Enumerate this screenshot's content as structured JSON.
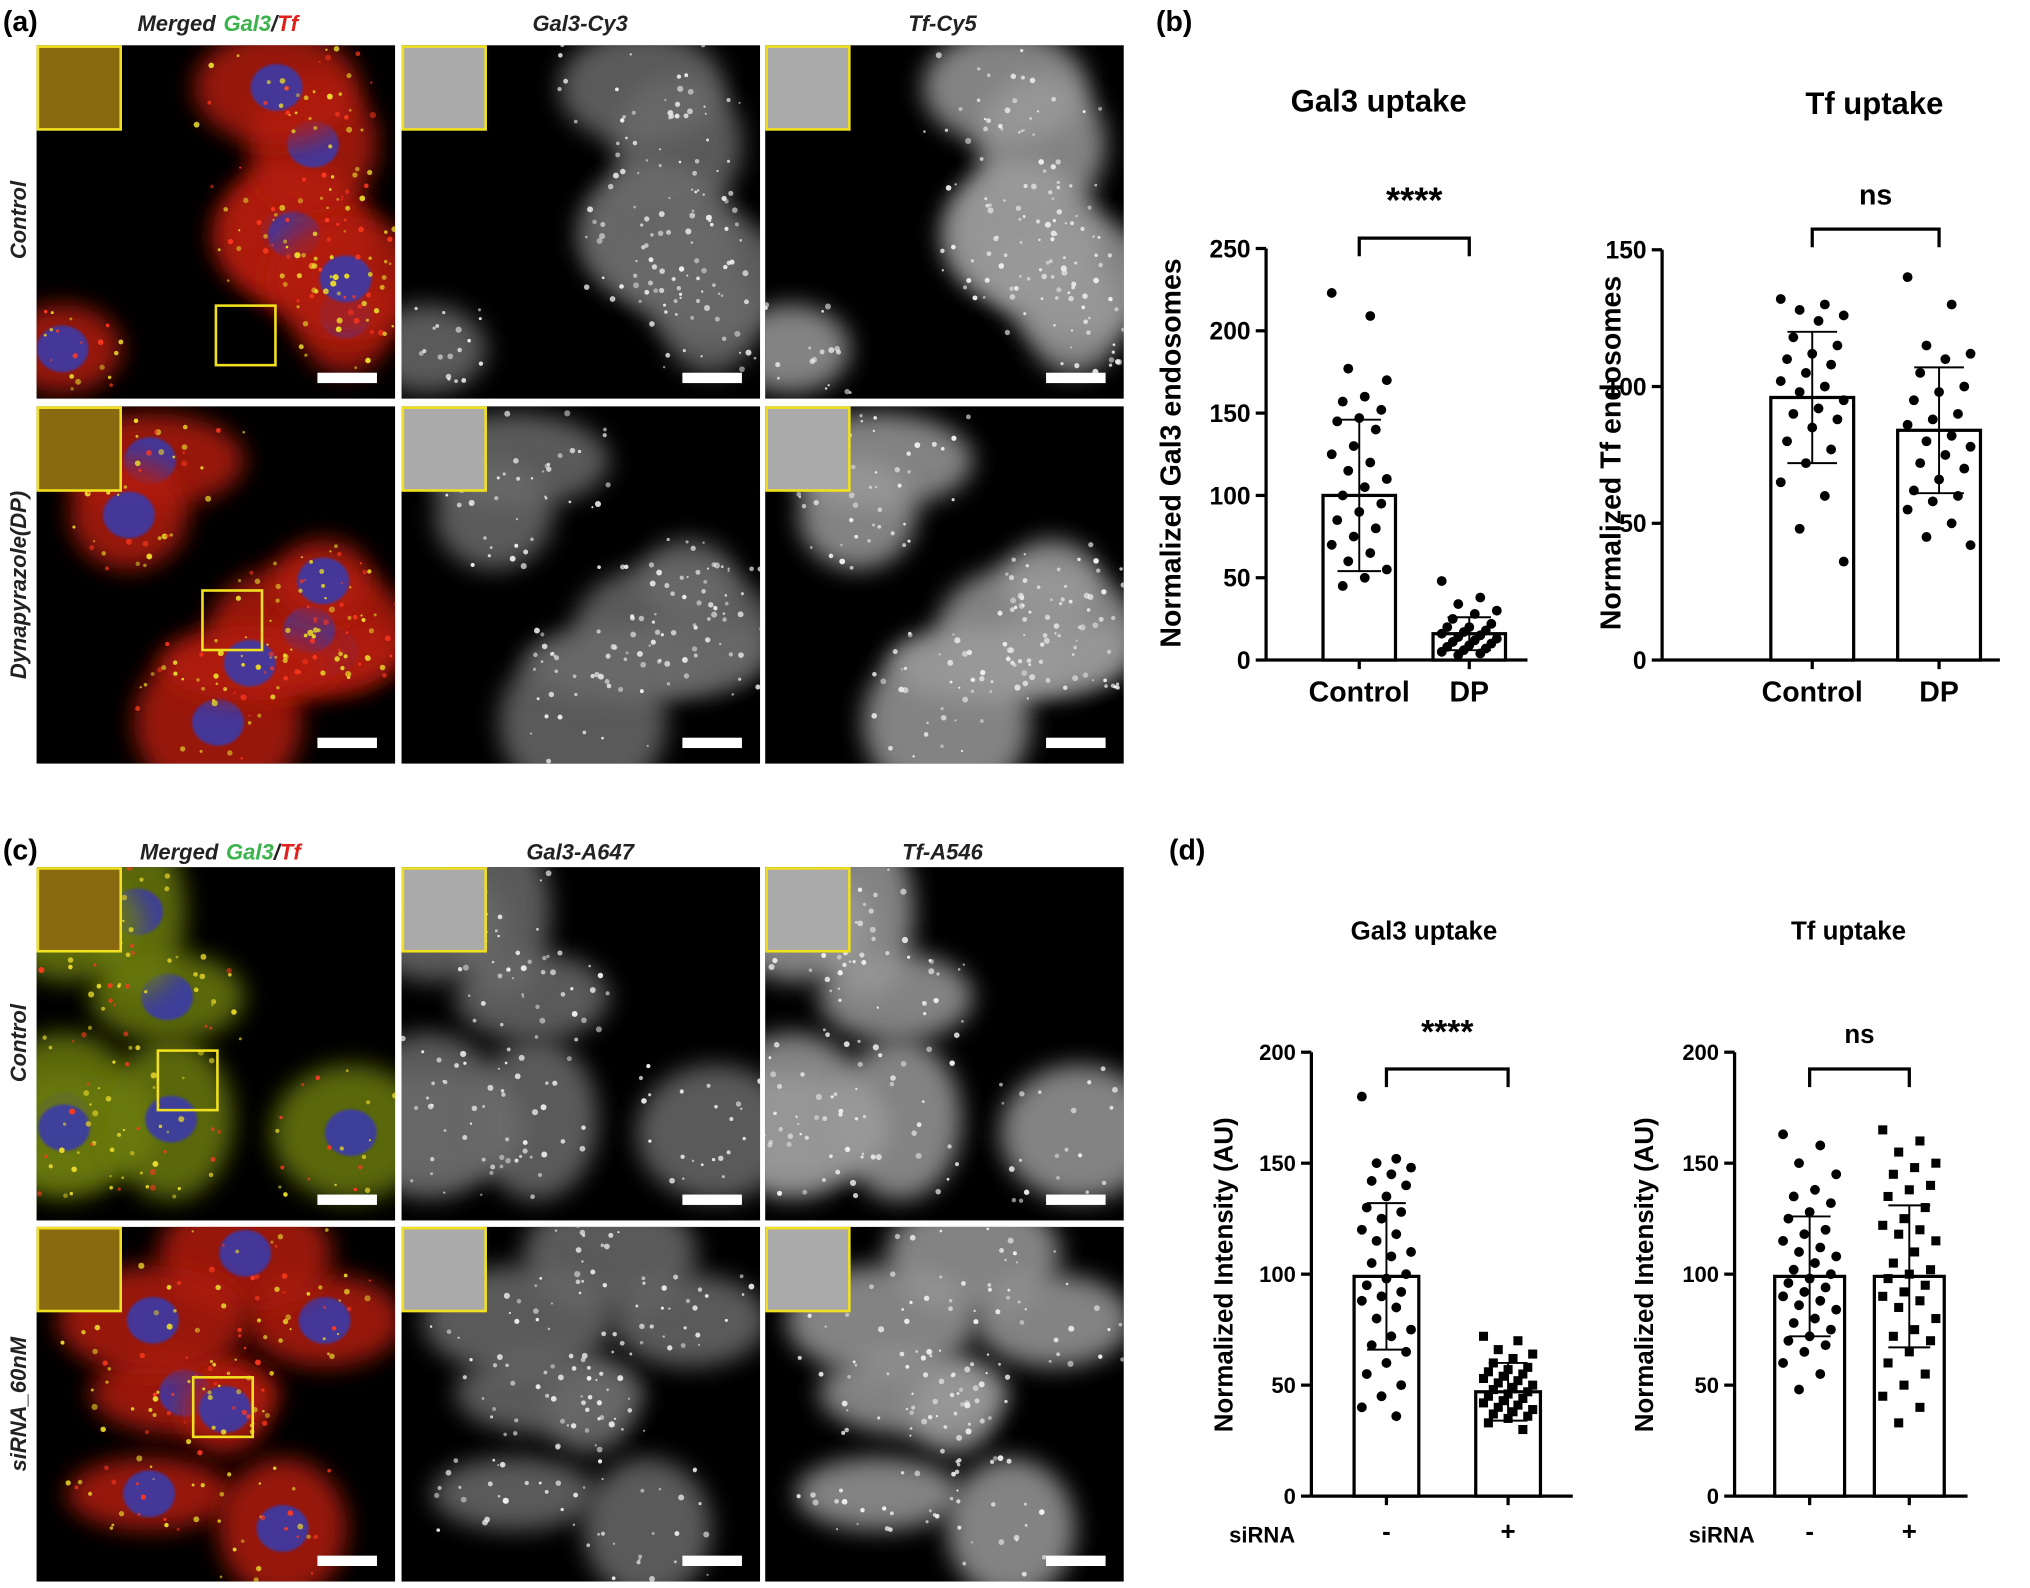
{
  "figure": {
    "panel_labels": [
      "(a)",
      "(b)",
      "(c)",
      "(d)"
    ],
    "a": {
      "merged_header": {
        "prefix": "Merged",
        "gal3": "Gal3",
        "slash": "/",
        "tf": "Tf"
      },
      "channel_headers": [
        "Gal3-Cy3",
        "Tf-Cy5"
      ],
      "rows": [
        "Control",
        "Dynapyrazole(DP)"
      ]
    },
    "c": {
      "merged_header": {
        "prefix": "Merged",
        "gal3": "Gal3",
        "slash": "/",
        "tf": "Tf"
      },
      "channel_headers": [
        "Gal3-A647",
        "Tf-A546"
      ],
      "rows": [
        "Control",
        "siRNA_60nM"
      ]
    }
  },
  "chart_data": [
    {
      "type": "bar",
      "title": "Gal3 uptake",
      "ylabel": "Normalized Gal3 endosomes",
      "categories": [
        "Control",
        "DP"
      ],
      "values": [
        100,
        16
      ],
      "errors": [
        46,
        10
      ],
      "points": [
        [
          223,
          209,
          177,
          170,
          160,
          157,
          152,
          147,
          145,
          140,
          130,
          125,
          120,
          115,
          110,
          105,
          100,
          95,
          90,
          85,
          80,
          75,
          70,
          65,
          60,
          55,
          50,
          45
        ],
        [
          48,
          38,
          34,
          30,
          28,
          25,
          22,
          20,
          20,
          18,
          17,
          16,
          15,
          14,
          13,
          12,
          11,
          10,
          9,
          8,
          7,
          6,
          5,
          4,
          3
        ]
      ],
      "markers": [
        "circle",
        "circle"
      ],
      "annotation": "****",
      "ylim": [
        0,
        250
      ],
      "yticks": [
        0,
        50,
        100,
        150,
        200,
        250
      ]
    },
    {
      "type": "bar",
      "title": "Tf uptake",
      "ylabel": "Normalized Tf endosomes",
      "categories": [
        "Control",
        "DP"
      ],
      "values": [
        96,
        84
      ],
      "errors": [
        24,
        23
      ],
      "points": [
        [
          132,
          130,
          128,
          126,
          124,
          118,
          115,
          112,
          110,
          108,
          105,
          102,
          100,
          98,
          95,
          92,
          90,
          88,
          85,
          80,
          77,
          72,
          65,
          60,
          48,
          36
        ],
        [
          140,
          130,
          115,
          112,
          110,
          105,
          100,
          98,
          95,
          90,
          88,
          86,
          82,
          80,
          78,
          75,
          72,
          70,
          66,
          62,
          60,
          58,
          55,
          50,
          45,
          42
        ]
      ],
      "markers": [
        "circle",
        "circle"
      ],
      "annotation": "ns",
      "ylim": [
        0,
        150
      ],
      "yticks": [
        0,
        50,
        100,
        150
      ]
    },
    {
      "type": "bar",
      "title": "Gal3 uptake",
      "ylabel": "Normalized Intensity (AU)",
      "xlabel": "siRNA",
      "categories": [
        "-",
        "+"
      ],
      "values": [
        99,
        47
      ],
      "errors": [
        33,
        13
      ],
      "points": [
        [
          180,
          152,
          150,
          148,
          145,
          142,
          140,
          135,
          130,
          128,
          125,
          120,
          118,
          115,
          110,
          108,
          105,
          100,
          98,
          95,
          92,
          90,
          88,
          85,
          80,
          75,
          72,
          68,
          65,
          60,
          55,
          50,
          45,
          40,
          36
        ],
        [
          72,
          70,
          66,
          64,
          62,
          60,
          58,
          57,
          56,
          55,
          54,
          53,
          52,
          51,
          50,
          49,
          48,
          47,
          46,
          45,
          44,
          43,
          42,
          41,
          40,
          39,
          38,
          37,
          36,
          35,
          33,
          30
        ]
      ],
      "markers": [
        "circle",
        "square"
      ],
      "annotation": "****",
      "ylim": [
        0,
        200
      ],
      "yticks": [
        0,
        50,
        100,
        150,
        200
      ]
    },
    {
      "type": "bar",
      "title": "Tf uptake",
      "ylabel": "Normalized Intensity (AU)",
      "xlabel": "siRNA",
      "categories": [
        "-",
        "+"
      ],
      "values": [
        99,
        99
      ],
      "errors": [
        27,
        32
      ],
      "points": [
        [
          163,
          158,
          150,
          145,
          138,
          135,
          132,
          128,
          125,
          120,
          118,
          115,
          112,
          110,
          108,
          105,
          102,
          100,
          98,
          96,
          94,
          92,
          90,
          88,
          86,
          84,
          80,
          78,
          75,
          72,
          70,
          68,
          65,
          60,
          55,
          48
        ],
        [
          165,
          160,
          155,
          150,
          148,
          145,
          140,
          138,
          135,
          130,
          125,
          122,
          120,
          118,
          115,
          110,
          105,
          102,
          100,
          98,
          95,
          92,
          90,
          88,
          85,
          80,
          75,
          72,
          70,
          65,
          60,
          55,
          50,
          45,
          40,
          33
        ]
      ],
      "markers": [
        "circle",
        "square"
      ],
      "annotation": "ns",
      "ylim": [
        0,
        200
      ],
      "yticks": [
        0,
        50,
        100,
        150,
        200
      ]
    }
  ]
}
